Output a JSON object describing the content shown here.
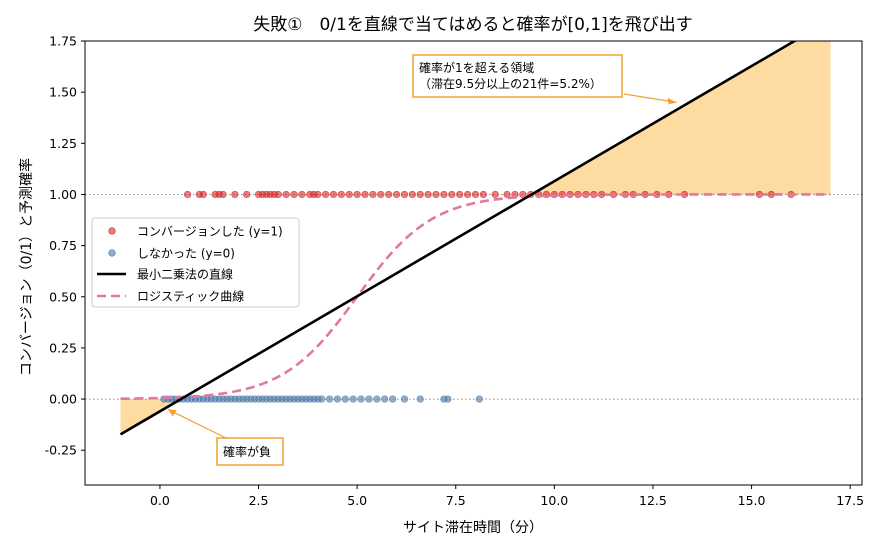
{
  "chart_data": {
    "type": "scatter",
    "title": "失敗①　0/1を直線で当てはめると確率が[0,1]を飛び出す",
    "xlabel": "サイト滞在時間（分）",
    "ylabel": "コンバージョン（0/1）と予測確率",
    "xlim": [
      -1.9,
      17.8
    ],
    "ylim": [
      -0.42,
      1.75
    ],
    "x_ticks": [
      0.0,
      2.5,
      5.0,
      7.5,
      10.0,
      12.5,
      15.0,
      17.5
    ],
    "x_tick_labels": [
      "0.0",
      "2.5",
      "5.0",
      "7.5",
      "10.0",
      "12.5",
      "15.0",
      "17.5"
    ],
    "y_ticks": [
      -0.25,
      0.0,
      0.25,
      0.5,
      0.75,
      1.0,
      1.25,
      1.5,
      1.75
    ],
    "y_tick_labels": [
      "-0.25",
      "0.00",
      "0.25",
      "0.50",
      "0.75",
      "1.00",
      "1.25",
      "1.50",
      "1.75"
    ],
    "grid": false,
    "reference_lines_y": [
      0.0,
      1.0
    ],
    "legend_position": "center-left",
    "series": [
      {
        "name": "コンバージョンした (y=1)",
        "kind": "scatter",
        "color": "#d62728",
        "y": 1,
        "x": [
          0.7,
          1.0,
          1.1,
          1.4,
          1.5,
          1.6,
          1.9,
          2.2,
          2.5,
          2.6,
          2.7,
          2.8,
          2.9,
          3.0,
          3.2,
          3.4,
          3.6,
          3.8,
          3.9,
          4.0,
          4.2,
          4.4,
          4.6,
          4.8,
          5.0,
          5.2,
          5.4,
          5.6,
          5.8,
          6.0,
          6.2,
          6.4,
          6.6,
          6.8,
          7.0,
          7.2,
          7.4,
          7.6,
          7.8,
          8.0,
          8.2,
          8.5,
          8.8,
          9.0,
          9.2,
          9.4,
          9.6,
          9.8,
          10.0,
          10.2,
          10.4,
          10.6,
          10.8,
          11.0,
          11.2,
          11.5,
          11.8,
          12.0,
          12.3,
          12.6,
          12.9,
          13.3,
          15.2,
          15.5,
          16.0
        ]
      },
      {
        "name": "しなかった (y=0)",
        "kind": "scatter",
        "color": "#4e79a7",
        "y": 0,
        "x": [
          0.1,
          0.2,
          0.3,
          0.4,
          0.5,
          0.6,
          0.7,
          0.8,
          0.9,
          1.0,
          1.1,
          1.2,
          1.3,
          1.4,
          1.5,
          1.6,
          1.7,
          1.8,
          1.9,
          2.0,
          2.1,
          2.2,
          2.3,
          2.4,
          2.5,
          2.6,
          2.7,
          2.8,
          2.9,
          3.0,
          3.1,
          3.2,
          3.3,
          3.4,
          3.5,
          3.6,
          3.7,
          3.8,
          3.9,
          4.0,
          4.1,
          4.3,
          4.5,
          4.7,
          4.9,
          5.1,
          5.3,
          5.5,
          5.7,
          5.9,
          6.2,
          6.6,
          7.2,
          7.3,
          8.1
        ]
      },
      {
        "name": "最小二乗法の直線",
        "kind": "line",
        "color": "#000000",
        "intercept": -0.06,
        "slope": 0.1125,
        "x_range": [
          -1.0,
          17.0
        ]
      },
      {
        "name": "ロジスティック曲線",
        "kind": "dashed-line",
        "color": "#e377a2",
        "midpoint": 5.0,
        "steepness": 1.05,
        "x_range": [
          -1.0,
          17.0
        ]
      }
    ],
    "shaded_regions": [
      {
        "meaning": "probability below 0",
        "color": "#fdd28a",
        "x_range": [
          -1.0,
          0.53
        ]
      },
      {
        "meaning": "probability above 1",
        "color": "#fdd28a",
        "x_range": [
          9.42,
          17.0
        ]
      }
    ],
    "annotations": [
      {
        "line1": "確率が1を超える領域",
        "line2": "（滞在9.5分以上の21件=5.2%）",
        "arrow_to": [
          13.1,
          1.45
        ]
      },
      {
        "line1": "確率が負",
        "arrow_to": [
          0.2,
          -0.05
        ]
      }
    ]
  }
}
